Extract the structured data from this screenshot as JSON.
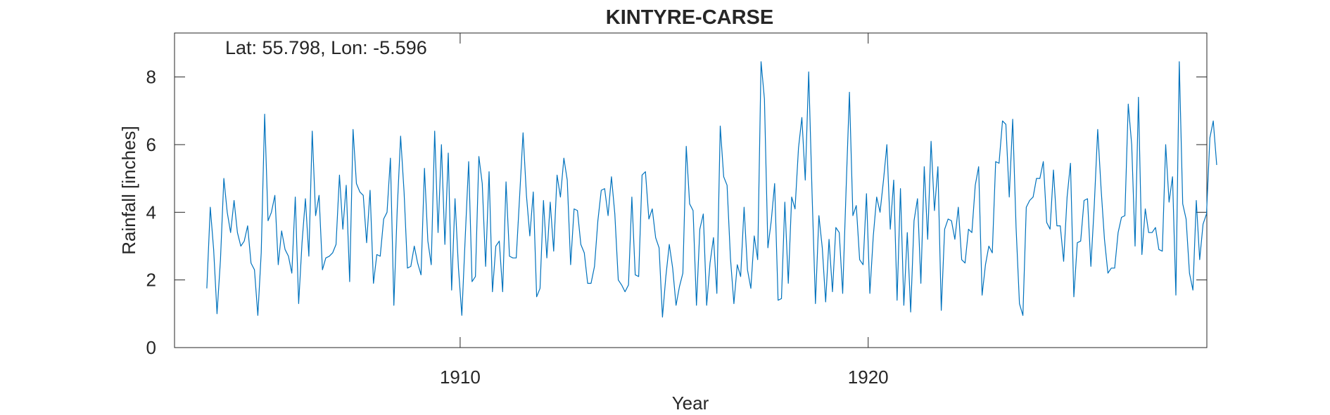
{
  "chart_data": {
    "type": "line",
    "title": "KINTYRE-CARSE",
    "annotation": "Lat: 55.798, Lon: -5.596",
    "xlabel": "Year",
    "ylabel": "Rainfall [inches]",
    "xlim": [
      1903.0,
      1928.3
    ],
    "ylim": [
      0,
      9.3
    ],
    "xticks": [
      1910,
      1920
    ],
    "yticks": [
      0,
      2,
      4,
      6,
      8
    ],
    "grid": false,
    "legend": "none",
    "line_color": "#0072BD",
    "series": [
      {
        "x_start": 1903.792,
        "x_step": 0.08333,
        "values": [
          1.75,
          4.15,
          2.9,
          1.0,
          2.6,
          5.0,
          4.0,
          3.4,
          4.35,
          3.4,
          3.0,
          3.15,
          3.6,
          2.5,
          2.3,
          0.95,
          2.8,
          6.9,
          3.75,
          4.0,
          4.5,
          2.45,
          3.45,
          2.9,
          2.7,
          2.2,
          4.45,
          1.3,
          3.1,
          4.4,
          2.7,
          6.4,
          3.9,
          4.5,
          2.3,
          2.65,
          2.7,
          2.8,
          3.05,
          5.1,
          3.5,
          4.8,
          1.95,
          6.45,
          4.85,
          4.6,
          4.5,
          3.1,
          4.65,
          1.9,
          2.75,
          2.7,
          3.8,
          4.0,
          5.6,
          1.25,
          4.1,
          6.25,
          4.6,
          2.35,
          2.4,
          3.0,
          2.5,
          2.15,
          5.3,
          3.15,
          2.45,
          6.4,
          3.4,
          6.0,
          3.05,
          5.75,
          1.7,
          4.4,
          2.35,
          0.95,
          3.25,
          5.5,
          1.95,
          2.1,
          5.65,
          4.85,
          2.4,
          5.2,
          1.65,
          3.0,
          3.15,
          1.65,
          4.9,
          2.7,
          2.65,
          2.65,
          4.5,
          6.35,
          4.5,
          3.3,
          4.6,
          1.5,
          1.75,
          4.35,
          2.65,
          4.3,
          2.85,
          5.1,
          4.45,
          5.6,
          4.95,
          2.45,
          4.1,
          4.05,
          3.05,
          2.8,
          1.9,
          1.9,
          2.4,
          3.75,
          4.65,
          4.7,
          3.9,
          5.05,
          3.95,
          2.0,
          1.85,
          1.65,
          1.85,
          4.45,
          2.15,
          2.1,
          5.1,
          5.2,
          3.8,
          4.1,
          3.25,
          2.95,
          0.9,
          2.1,
          3.05,
          2.35,
          1.25,
          1.8,
          2.2,
          5.95,
          4.25,
          4.05,
          1.25,
          3.5,
          3.95,
          1.25,
          2.5,
          3.25,
          1.6,
          6.55,
          5.05,
          4.8,
          2.65,
          1.3,
          2.45,
          2.1,
          4.15,
          2.3,
          1.75,
          3.3,
          2.6,
          8.45,
          7.35,
          2.95,
          3.75,
          4.85,
          1.4,
          1.45,
          4.3,
          1.9,
          4.45,
          4.1,
          5.9,
          6.8,
          4.95,
          8.15,
          4.55,
          1.3,
          3.9,
          2.95,
          1.35,
          3.2,
          1.65,
          3.55,
          3.4,
          1.6,
          4.65,
          7.55,
          3.9,
          4.2,
          2.6,
          2.45,
          4.55,
          1.6,
          3.3,
          4.45,
          4.0,
          4.95,
          6.0,
          3.5,
          4.95,
          1.4,
          4.7,
          1.25,
          3.4,
          1.05,
          3.75,
          4.4,
          1.9,
          5.35,
          3.2,
          6.1,
          4.05,
          5.35,
          1.1,
          3.5,
          3.8,
          3.75,
          3.2,
          4.15,
          2.6,
          2.5,
          3.5,
          3.4,
          4.8,
          5.35,
          1.55,
          2.45,
          3.0,
          2.8,
          5.5,
          5.45,
          6.7,
          6.6,
          4.45,
          6.75,
          3.55,
          1.3,
          0.95,
          4.15,
          4.35,
          4.45,
          5.0,
          5.0,
          5.5,
          3.7,
          3.5,
          5.25,
          3.6,
          3.6,
          2.55,
          4.45,
          5.45,
          1.5,
          3.1,
          3.15,
          4.35,
          4.4,
          2.4,
          4.2,
          6.45,
          4.7,
          3.2,
          2.2,
          2.35,
          2.35,
          3.4,
          3.85,
          3.9,
          7.2,
          6.0,
          3.0,
          7.4,
          2.75,
          4.1,
          3.4,
          3.4,
          3.55,
          2.9,
          2.85,
          6.0,
          4.3,
          5.05,
          1.55,
          8.45,
          4.25,
          3.8,
          2.2,
          1.7,
          4.35,
          2.6,
          3.65,
          3.95,
          6.2,
          6.7,
          5.4
        ]
      }
    ]
  }
}
